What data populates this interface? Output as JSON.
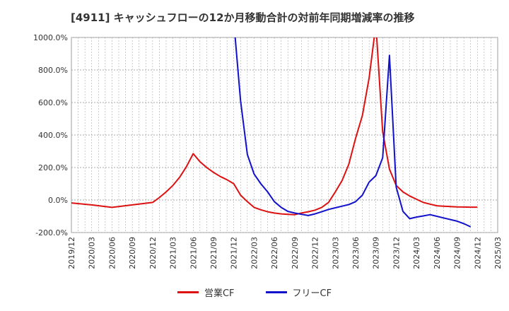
{
  "chart_data": {
    "type": "line",
    "title": "[4911]  キャッシュフローの12か月移動合計の対前年同期増減率の推移",
    "xlabel": "",
    "ylabel": "",
    "ylim": [
      -200,
      1000
    ],
    "yticks": [
      "1000.0%",
      "800.0%",
      "600.0%",
      "400.0%",
      "200.0%",
      "0.0%",
      "-200.0%"
    ],
    "xticks": [
      "2019/12",
      "2020/03",
      "2020/06",
      "2020/09",
      "2020/12",
      "2021/03",
      "2021/06",
      "2021/09",
      "2021/12",
      "2022/03",
      "2022/06",
      "2022/09",
      "2022/12",
      "2023/03",
      "2023/06",
      "2023/09",
      "2023/12",
      "2024/03",
      "2024/06",
      "2024/09",
      "2024/12",
      "2025/03"
    ],
    "grid": true,
    "legend_position": "bottom",
    "series": [
      {
        "name": "営業CF",
        "color": "#dd1111",
        "points": [
          [
            "2019/12",
            -18
          ],
          [
            "2020/03",
            -30
          ],
          [
            "2020/06",
            -45
          ],
          [
            "2020/09",
            -30
          ],
          [
            "2020/12",
            -15
          ],
          [
            "2021/01",
            15
          ],
          [
            "2021/02",
            50
          ],
          [
            "2021/03",
            90
          ],
          [
            "2021/04",
            140
          ],
          [
            "2021/05",
            205
          ],
          [
            "2021/06",
            285
          ],
          [
            "2021/07",
            235
          ],
          [
            "2021/08",
            200
          ],
          [
            "2021/09",
            170
          ],
          [
            "2021/10",
            145
          ],
          [
            "2021/11",
            125
          ],
          [
            "2021/12",
            100
          ],
          [
            "2022/01",
            30
          ],
          [
            "2022/02",
            -10
          ],
          [
            "2022/03",
            -45
          ],
          [
            "2022/04",
            -60
          ],
          [
            "2022/05",
            -72
          ],
          [
            "2022/06",
            -80
          ],
          [
            "2022/07",
            -85
          ],
          [
            "2022/08",
            -88
          ],
          [
            "2022/09",
            -90
          ],
          [
            "2022/10",
            -80
          ],
          [
            "2022/11",
            -72
          ],
          [
            "2022/12",
            -62
          ],
          [
            "2023/01",
            -45
          ],
          [
            "2023/02",
            -15
          ],
          [
            "2023/03",
            50
          ],
          [
            "2023/04",
            120
          ],
          [
            "2023/05",
            220
          ],
          [
            "2023/06",
            380
          ],
          [
            "2023/07",
            520
          ],
          [
            "2023/08",
            750
          ],
          [
            "2023/09",
            1080
          ],
          [
            "2023/10",
            420
          ],
          [
            "2023/11",
            190
          ],
          [
            "2023/12",
            90
          ],
          [
            "2024/01",
            50
          ],
          [
            "2024/02",
            25
          ],
          [
            "2024/03",
            5
          ],
          [
            "2024/04",
            -15
          ],
          [
            "2024/05",
            -25
          ],
          [
            "2024/06",
            -35
          ],
          [
            "2024/07",
            -38
          ],
          [
            "2024/08",
            -40
          ],
          [
            "2024/09",
            -42
          ],
          [
            "2024/10",
            -43
          ],
          [
            "2024/11",
            -44
          ],
          [
            "2024/12",
            -44
          ]
        ]
      },
      {
        "name": "フリーCF",
        "color": "#1111cc",
        "points": [
          [
            "2021/12",
            1100
          ],
          [
            "2022/01",
            610
          ],
          [
            "2022/02",
            280
          ],
          [
            "2022/03",
            160
          ],
          [
            "2022/04",
            100
          ],
          [
            "2022/05",
            50
          ],
          [
            "2022/06",
            -10
          ],
          [
            "2022/07",
            -45
          ],
          [
            "2022/08",
            -70
          ],
          [
            "2022/09",
            -80
          ],
          [
            "2022/10",
            -88
          ],
          [
            "2022/11",
            -95
          ],
          [
            "2022/12",
            -85
          ],
          [
            "2023/01",
            -72
          ],
          [
            "2023/02",
            -58
          ],
          [
            "2023/03",
            -48
          ],
          [
            "2023/04",
            -38
          ],
          [
            "2023/05",
            -28
          ],
          [
            "2023/06",
            -10
          ],
          [
            "2023/07",
            30
          ],
          [
            "2023/08",
            110
          ],
          [
            "2023/09",
            150
          ],
          [
            "2023/10",
            260
          ],
          [
            "2023/11",
            890
          ],
          [
            "2023/12",
            80
          ],
          [
            "2024/01",
            -70
          ],
          [
            "2024/02",
            -115
          ],
          [
            "2024/03",
            -105
          ],
          [
            "2024/04",
            -98
          ],
          [
            "2024/05",
            -90
          ],
          [
            "2024/06",
            -100
          ],
          [
            "2024/07",
            -110
          ],
          [
            "2024/08",
            -120
          ],
          [
            "2024/09",
            -130
          ],
          [
            "2024/10",
            -145
          ],
          [
            "2024/11",
            -165
          ]
        ]
      }
    ]
  }
}
